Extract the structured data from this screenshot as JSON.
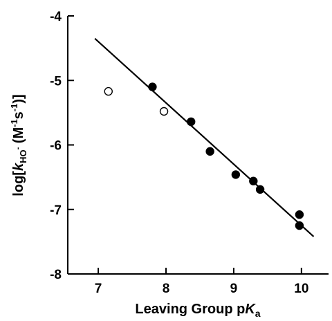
{
  "chart_data": {
    "type": "scatter",
    "xlabel_main": "Leaving Group p",
    "xlabel_italic": "K",
    "xlabel_sub": "a",
    "ylabel_prefix": "log[",
    "ylabel_k": "k",
    "ylabel_ksub": "HO",
    "ylabel_ksub_sign": "-",
    "ylabel_unit_open": " (M",
    "ylabel_exp1": "-1",
    "ylabel_s": "s",
    "ylabel_exp2": "-1",
    "ylabel_close": ")]",
    "xlim": [
      6.55,
      10.4
    ],
    "ylim": [
      -8,
      -4
    ],
    "xticks": [
      7,
      8,
      9,
      10
    ],
    "yticks": [
      -4,
      -5,
      -6,
      -7,
      -8
    ],
    "xtick_labels": [
      "7",
      "8",
      "9",
      "10"
    ],
    "ytick_labels": [
      "-4",
      "-5",
      "-6",
      "-7",
      "-8"
    ],
    "series": [
      {
        "marker": "filled-circle",
        "points": [
          {
            "x": 7.8,
            "y": -5.1
          },
          {
            "x": 8.37,
            "y": -5.64
          },
          {
            "x": 8.65,
            "y": -6.1
          },
          {
            "x": 9.03,
            "y": -6.46
          },
          {
            "x": 9.29,
            "y": -6.56
          },
          {
            "x": 9.39,
            "y": -6.69
          },
          {
            "x": 9.97,
            "y": -7.08
          },
          {
            "x": 9.97,
            "y": -7.25
          }
        ]
      },
      {
        "marker": "open-circle",
        "points": [
          {
            "x": 7.15,
            "y": -5.17
          },
          {
            "x": 7.97,
            "y": -5.48
          }
        ]
      }
    ],
    "fit_line": {
      "x1": 6.95,
      "y1": -4.35,
      "x2": 10.18,
      "y2": -7.42
    },
    "grid": false,
    "marker_color": "#000000"
  }
}
